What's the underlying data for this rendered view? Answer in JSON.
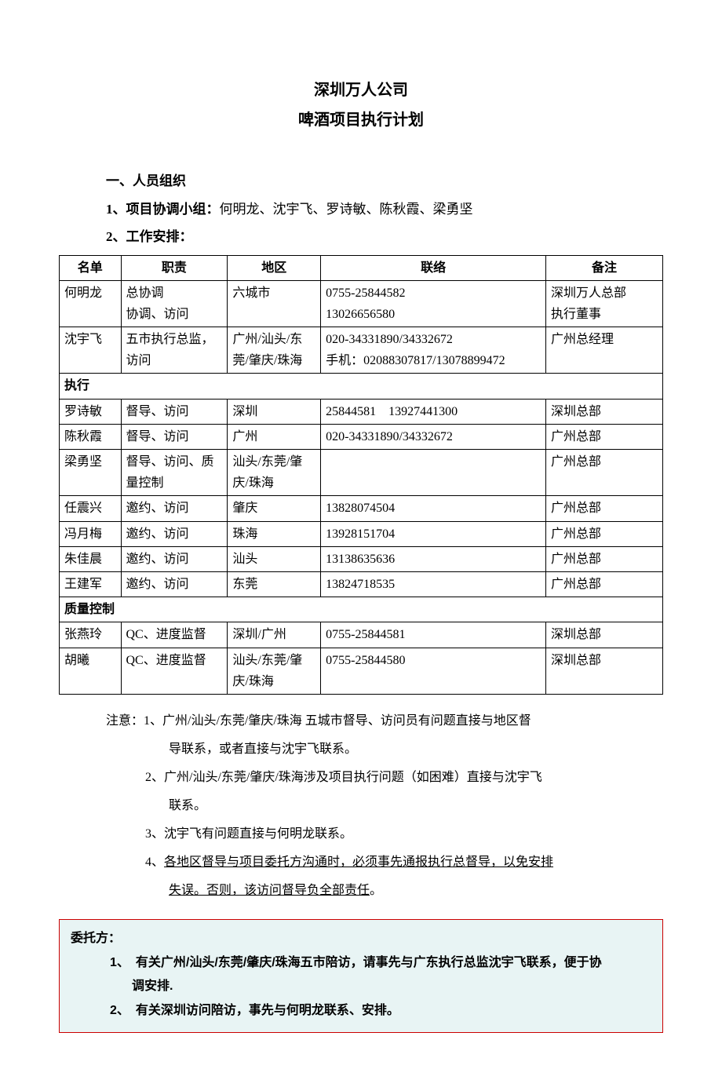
{
  "title": "深圳万人公司",
  "subtitle": "啤酒项目执行计划",
  "section1": {
    "heading": "一、人员组织",
    "item1_label": "1、项目协调小组：",
    "item1_names": "何明龙、沈宇飞、罗诗敏、陈秋霞、梁勇坚",
    "item2_label": "2、工作安排："
  },
  "table": {
    "headers": {
      "name": "名单",
      "duty": "职责",
      "region": "地区",
      "contact": "联络",
      "remark": "备注"
    },
    "rows": [
      {
        "name": "何明龙",
        "duty": "总协调\n协调、访问",
        "region": "六城市",
        "contact": "0755-25844582\n13026656580",
        "remark": "深圳万人总部\n执行董事"
      },
      {
        "name": "沈宇飞",
        "duty": "五市执行总监，访问",
        "region": "广州/汕头/东莞/肇庆/珠海",
        "contact": "020-34331890/34332672\n手机：02088307817/13078899472",
        "remark": "广州总经理"
      }
    ],
    "section_exec": "执行",
    "rows_exec": [
      {
        "name": "罗诗敏",
        "duty": "督导、访问",
        "region": "深圳",
        "contact": "25844581　13927441300",
        "remark": "深圳总部"
      },
      {
        "name": "陈秋霞",
        "duty": "督导、访问",
        "region": "广州",
        "contact": "020-34331890/34332672",
        "remark": "广州总部"
      },
      {
        "name": "梁勇坚",
        "duty": "督导、访问、质量控制",
        "region": "汕头/东莞/肇庆/珠海",
        "contact": "",
        "remark": "广州总部"
      },
      {
        "name": "任震兴",
        "duty": "邀约、访问",
        "region": "肇庆",
        "contact": "13828074504",
        "remark": "广州总部"
      },
      {
        "name": "冯月梅",
        "duty": "邀约、访问",
        "region": "珠海",
        "contact": "13928151704",
        "remark": "广州总部"
      },
      {
        "name": "朱佳晨",
        "duty": "邀约、访问",
        "region": "汕头",
        "contact": "13138635636",
        "remark": "广州总部"
      },
      {
        "name": "王建军",
        "duty": "邀约、访问",
        "region": "东莞",
        "contact": "13824718535",
        "remark": "广州总部"
      }
    ],
    "section_qc": "质量控制",
    "rows_qc": [
      {
        "name": "张燕玲",
        "duty": "QC、进度监督",
        "region": "深圳/广州",
        "contact": "0755-25844581",
        "remark": "深圳总部"
      },
      {
        "name": "胡曦",
        "duty": "QC、进度监督",
        "region": "汕头/东莞/肇庆/珠海",
        "contact": "0755-25844580",
        "remark": "深圳总部"
      }
    ]
  },
  "notes": {
    "prefix": "注意：",
    "n1a": "1、广州/汕头/东莞/肇庆/珠海 五城市督导、访问员有问题直接与地区督",
    "n1b": "导联系，或者直接与沈宇飞联系。",
    "n2a": "2、广州/汕头/东莞/肇庆/珠海涉及项目执行问题（如困难）直接与沈宇飞",
    "n2b": "联系。",
    "n3": "3、沈宇飞有问题直接与何明龙联系。",
    "n4a": "4、",
    "n4a_u": "各地区督导与项目委托方沟通时，必须事先通报执行总督导，以免安排",
    "n4b_u": "失误。否则，该访问督导负全部责任",
    "n4b_end": "。"
  },
  "callout": {
    "title": "委托方：",
    "c1a": "1、　有关广州/汕头/东莞/肇庆/珠海五市陪访，请事先与广东执行总监沈宇飞联系，便于协",
    "c1b": "调安排.",
    "c2": "2、　有关深圳访问陪访，事先与何明龙联系、安排。"
  },
  "colors": {
    "background": "#ffffff",
    "text": "#000000",
    "border": "#000000",
    "callout_border": "#cc0000",
    "callout_bg": "#e8f4f4"
  }
}
